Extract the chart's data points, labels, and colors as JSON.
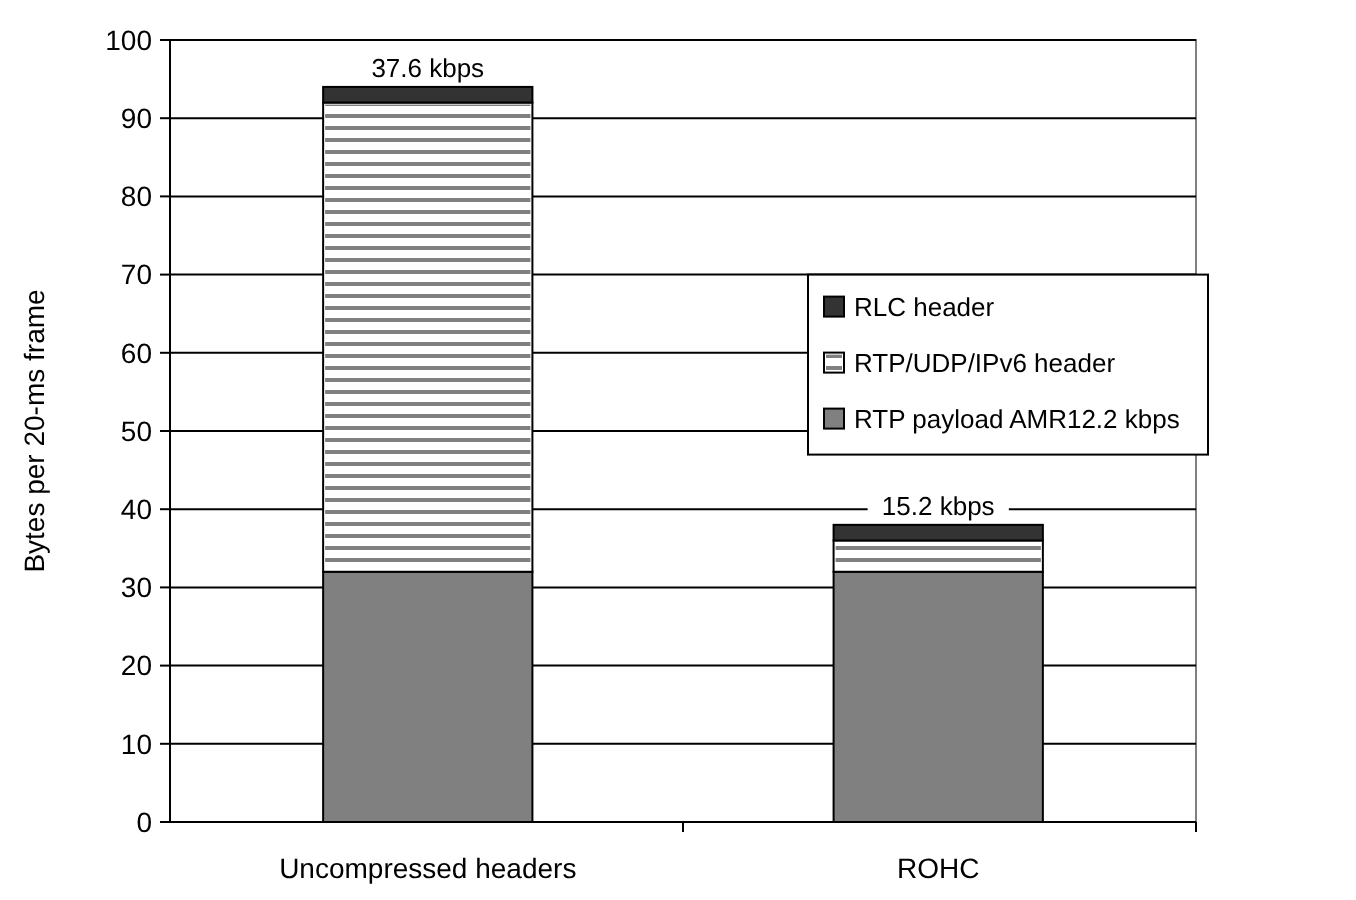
{
  "chart_data": {
    "type": "bar",
    "stacked": true,
    "categories": [
      "Uncompressed headers",
      "ROHC"
    ],
    "ylabel": "Bytes per 20-ms frame",
    "ylim": [
      0,
      100
    ],
    "yticks": [
      0,
      10,
      20,
      30,
      40,
      50,
      60,
      70,
      80,
      90,
      100
    ],
    "grid": "y",
    "legend": "top right",
    "annotations": [
      {
        "text": "37.6 kbps",
        "x": "Uncompressed headers",
        "y": 94
      },
      {
        "text": "15.2 kbps",
        "x": "ROHC",
        "y": 38
      }
    ],
    "series": [
      {
        "name": "RTP payload AMR12.2 kbps",
        "color": "#808080",
        "values": [
          32,
          32
        ]
      },
      {
        "name": "RTP/UDP/IPv6 header",
        "color": "#ffffff",
        "values": [
          60,
          4
        ]
      },
      {
        "name": "RLC header",
        "color": "#333333",
        "values": [
          2,
          2
        ]
      }
    ]
  }
}
